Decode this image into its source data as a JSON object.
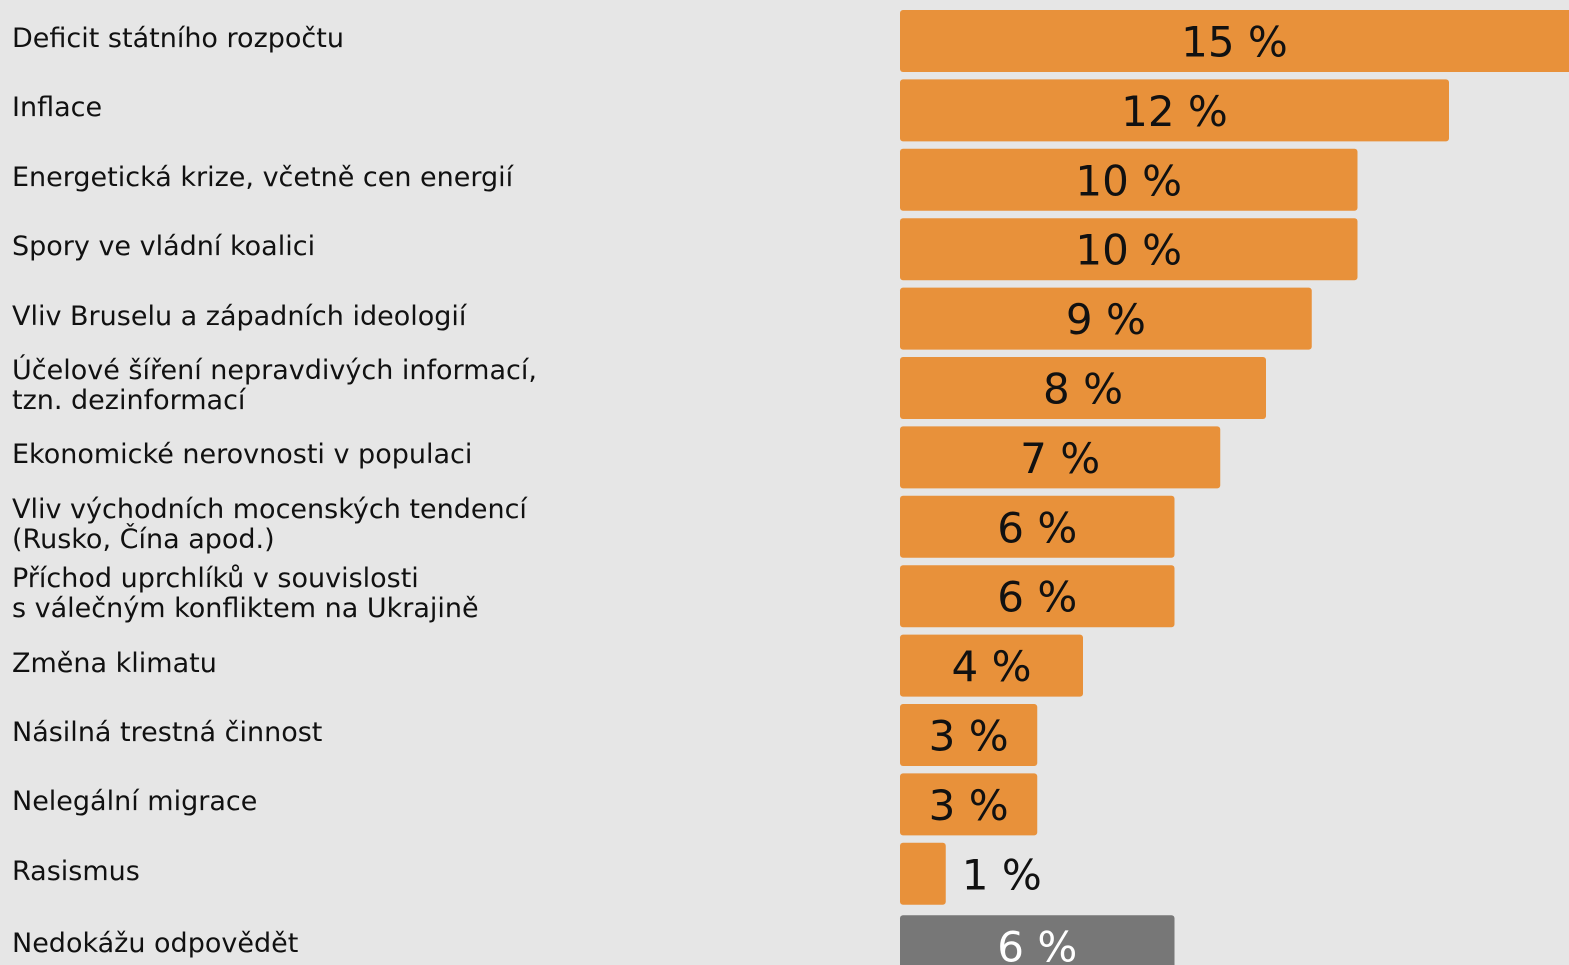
{
  "chart_data": {
    "type": "barh",
    "categories": [
      "Deficit státního rozpočtu",
      "Inflace",
      "Energetická krize, včetně cen energií",
      "Spory ve vládní koalici",
      "Vliv Bruselu a západních ideologií",
      "Účelové šíření nepravdivých informací,\ntzn. dezinformací",
      "Ekonomické nerovnosti v populaci",
      "Vliv východních mocenských tendencí\n(Rusko, Čína apod.)",
      "Příchod uprchlíků v souvislosti\ns válečným konfliktem na Ukrajině",
      "Změna klimatu",
      "Násilná trestná činnost",
      "Nelegální migrace",
      "Rasismus",
      "Nedokážu odpovědět"
    ],
    "values": [
      15,
      12,
      10,
      10,
      9,
      8,
      7,
      6,
      6,
      4,
      3,
      3,
      1,
      6
    ],
    "value_labels": [
      "15 %",
      "12 %",
      "10 %",
      "10 %",
      "9 %",
      "8 %",
      "7 %",
      "6 %",
      "6 %",
      "4 %",
      "3 %",
      "3 %",
      "1 %",
      "6 %"
    ],
    "colors": [
      "#e8913a",
      "#e8913a",
      "#e8913a",
      "#e8913a",
      "#e8913a",
      "#e8913a",
      "#e8913a",
      "#e8913a",
      "#e8913a",
      "#e8913a",
      "#e8913a",
      "#e8913a",
      "#e8913a",
      "#777777"
    ]
  }
}
